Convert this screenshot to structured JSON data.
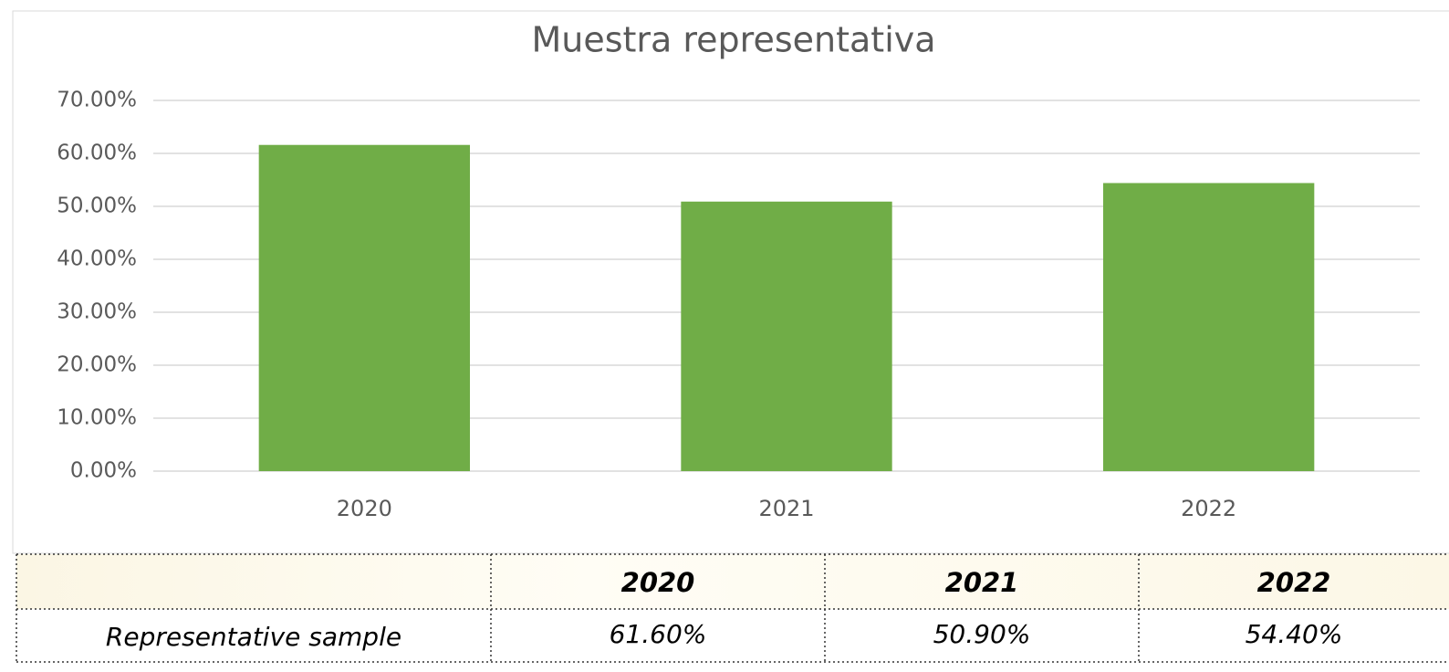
{
  "chart_data": {
    "type": "bar",
    "title": "Muestra representativa",
    "categories": [
      "2020",
      "2021",
      "2022"
    ],
    "values": [
      61.6,
      50.9,
      54.4
    ],
    "color": "#70ad47",
    "ylim": [
      0,
      70
    ],
    "yticks": [
      {
        "value": 0,
        "label": "0.00%"
      },
      {
        "value": 10,
        "label": "10.00%"
      },
      {
        "value": 20,
        "label": "20.00%"
      },
      {
        "value": 30,
        "label": "30.00%"
      },
      {
        "value": 40,
        "label": "40.00%"
      },
      {
        "value": 50,
        "label": "50.00%"
      },
      {
        "value": 60,
        "label": "60.00%"
      },
      {
        "value": 70,
        "label": "70.00%"
      }
    ],
    "grid": true
  },
  "table": {
    "columns": [
      "2020",
      "2021",
      "2022"
    ],
    "rows": [
      {
        "label": "Representative sample",
        "cells": [
          "61.60%",
          "50.90%",
          "54.40%"
        ]
      }
    ]
  }
}
